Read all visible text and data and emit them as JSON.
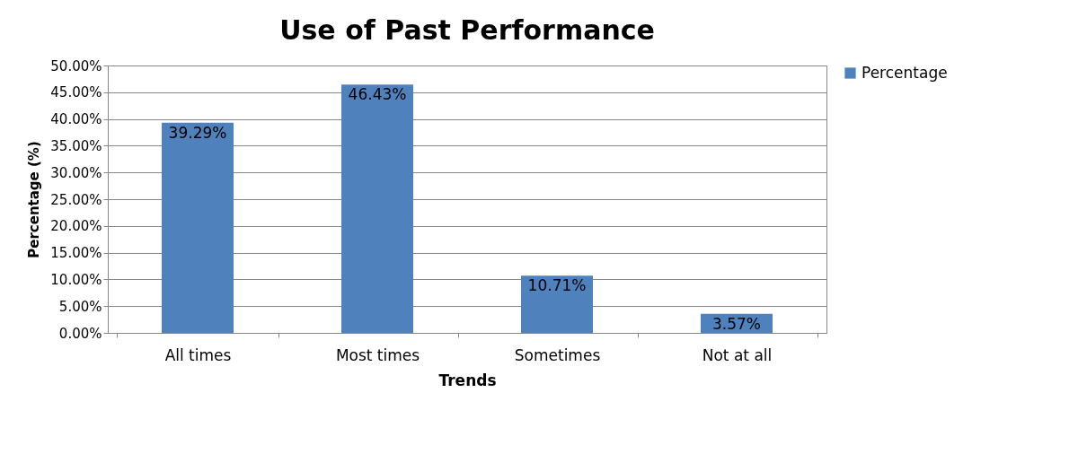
{
  "chart_data": {
    "type": "bar",
    "title": "Use of Past Performance",
    "xlabel": "Trends",
    "ylabel": "Percentage (%)",
    "categories": [
      "All times",
      "Most times",
      "Sometimes",
      "Not at all"
    ],
    "series": [
      {
        "name": "Percentage",
        "color": "#4f81bd",
        "values": [
          39.29,
          46.43,
          10.71,
          3.57
        ],
        "value_labels": [
          "39.29%",
          "46.43%",
          "10.71%",
          "3.57%"
        ]
      }
    ],
    "ylim": [
      0,
      50
    ],
    "yticks": [
      {
        "value": 0,
        "label": "0.00%"
      },
      {
        "value": 5,
        "label": "5.00%"
      },
      {
        "value": 10,
        "label": "10.00%"
      },
      {
        "value": 15,
        "label": "15.00%"
      },
      {
        "value": 20,
        "label": "20.00%"
      },
      {
        "value": 25,
        "label": "25.00%"
      },
      {
        "value": 30,
        "label": "30.00%"
      },
      {
        "value": 35,
        "label": "35.00%"
      },
      {
        "value": 40,
        "label": "40.00%"
      },
      {
        "value": 45,
        "label": "45.00%"
      },
      {
        "value": 50,
        "label": "50.00%"
      }
    ],
    "grid": "y",
    "legend": "right"
  }
}
